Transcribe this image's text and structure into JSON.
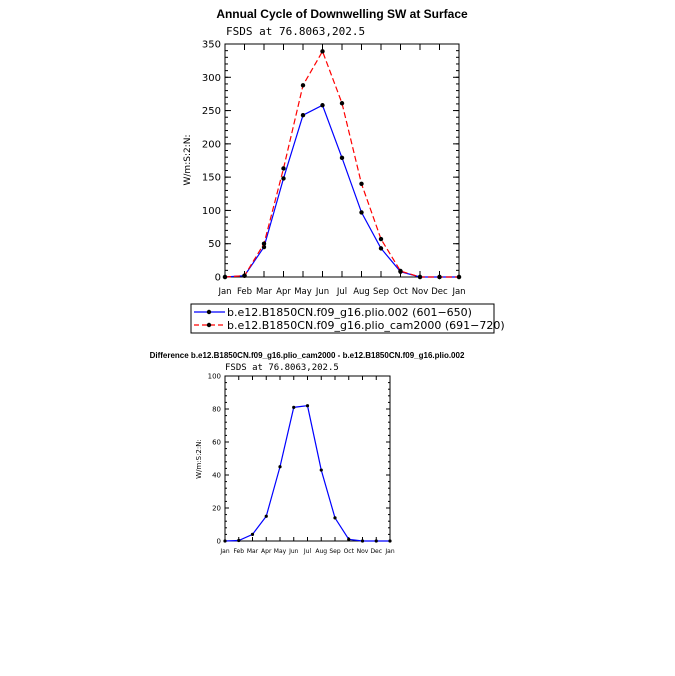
{
  "chart_data": [
    {
      "type": "line",
      "title": "Annual Cycle of Downwelling SW at Surface",
      "subtitle": "FSDS  at  76.8063,202.5",
      "ylabel": "W/m:S:2:N:",
      "xlabel": "",
      "categories": [
        "Jan",
        "Feb",
        "Mar",
        "Apr",
        "May",
        "Jun",
        "Jul",
        "Aug",
        "Sep",
        "Oct",
        "Nov",
        "Dec",
        "Jan"
      ],
      "ylim": [
        0,
        350
      ],
      "yticks": [
        0,
        50,
        100,
        150,
        200,
        250,
        300,
        350
      ],
      "legend_position": "below",
      "series": [
        {
          "name": "b.e12.B1850CN.f09_g16.plio.002 (601−650)",
          "color": "#0000ff",
          "dash": "solid",
          "values": [
            0,
            2,
            45,
            148,
            243,
            258,
            179,
            97,
            43,
            8,
            0,
            0,
            0
          ]
        },
        {
          "name": "b.e12.B1850CN.f09_g16.plio_cam2000 (691−720)",
          "color": "#ff0000",
          "dash": "dashed",
          "values": [
            0,
            2,
            50,
            163,
            288,
            339,
            261,
            140,
            57,
            9,
            0,
            0,
            0
          ]
        }
      ]
    },
    {
      "type": "line",
      "title": "Difference b.e12.B1850CN.f09_g16.plio_cam2000 - b.e12.B1850CN.f09_g16.plio.002",
      "subtitle": "FSDS  at  76.8063,202.5",
      "ylabel": "W/m:S:2:N:",
      "xlabel": "",
      "categories": [
        "Jan",
        "Feb",
        "Mar",
        "Apr",
        "May",
        "Jun",
        "Jul",
        "Aug",
        "Sep",
        "Oct",
        "Nov",
        "Dec",
        "Jan"
      ],
      "ylim": [
        0,
        100
      ],
      "yticks": [
        0,
        20,
        40,
        60,
        80,
        100
      ],
      "series": [
        {
          "color": "#0000ff",
          "dash": "solid",
          "values": [
            0,
            0.3,
            4,
            15,
            45,
            81,
            82,
            43,
            14,
            1,
            0,
            0,
            0
          ]
        }
      ]
    }
  ]
}
